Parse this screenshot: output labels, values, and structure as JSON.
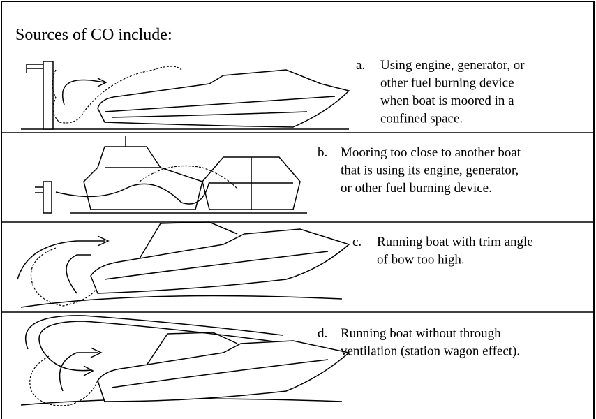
{
  "title": "Sources of CO include:",
  "items": [
    {
      "letter": "a.",
      "lines": [
        "Using engine, generator, or",
        "other fuel burning device",
        "when boat is moored in a",
        "confined space."
      ]
    },
    {
      "letter": "b.",
      "lines": [
        "Mooring too close to another boat",
        "that is using its engine, generator,",
        "or other fuel burning device."
      ]
    },
    {
      "letter": "c.",
      "lines": [
        "Running boat with trim angle",
        "of bow too high."
      ]
    },
    {
      "letter": "d.",
      "lines": [
        "Running boat without through",
        "ventilation (station wagon effect)."
      ]
    }
  ]
}
